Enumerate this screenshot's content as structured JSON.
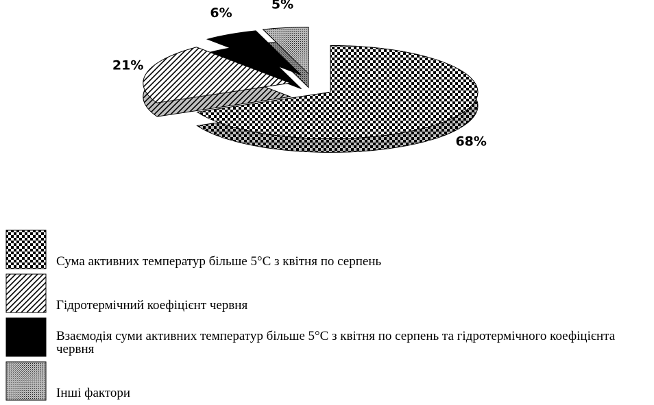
{
  "chart_data": {
    "type": "pie3d",
    "categories": [
      "Сума активних температур більше 5°С з квітня по серпень",
      "Гідротермічний коефіцієнт червня",
      "Взаємодія суми активних температур більше 5°С з квітня по серпень та гідротермічного коефіцієнта червня",
      "Інші фактори"
    ],
    "values": [
      68,
      21,
      6,
      5
    ],
    "value_labels": [
      "68%",
      "21%",
      "6%",
      "5%"
    ],
    "patterns": [
      "checkerboard",
      "diagonal-hatch",
      "solid",
      "dots"
    ],
    "legend": "bottom-left"
  }
}
